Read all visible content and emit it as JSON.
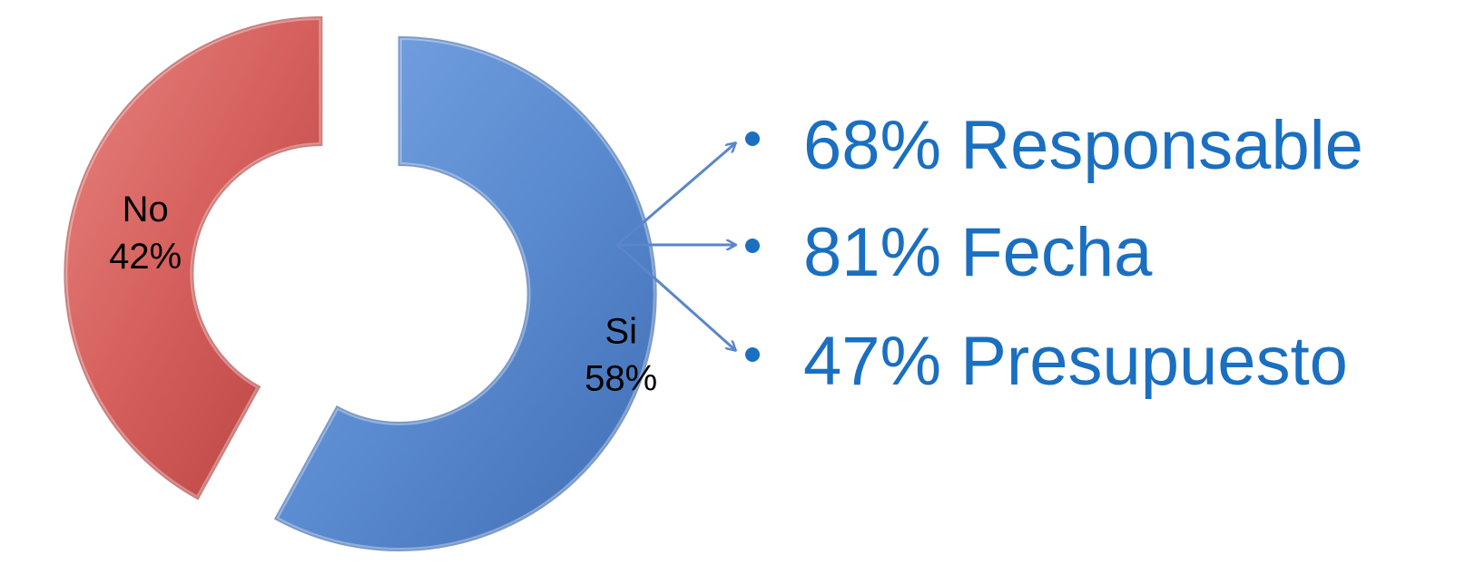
{
  "chart_data": {
    "type": "donut",
    "title": "",
    "categories": [
      "Si",
      "No"
    ],
    "values": [
      58,
      42
    ],
    "unit": "%",
    "data_labels": [
      {
        "name": "Si",
        "value": "58%"
      },
      {
        "name": "No",
        "value": "42%"
      }
    ],
    "colors": {
      "Si": "#5b8bd0",
      "No": "#d45e5b"
    },
    "exploded": true,
    "legend": "none"
  },
  "breakdown": {
    "bullet_color": "#1a6fc1",
    "arrow_color": "#5b86c9",
    "items": [
      {
        "value": 68,
        "text": "68% Responsable"
      },
      {
        "value": 81,
        "text": "81% Fecha"
      },
      {
        "value": 47,
        "text": "47% Presupuesto"
      }
    ]
  }
}
